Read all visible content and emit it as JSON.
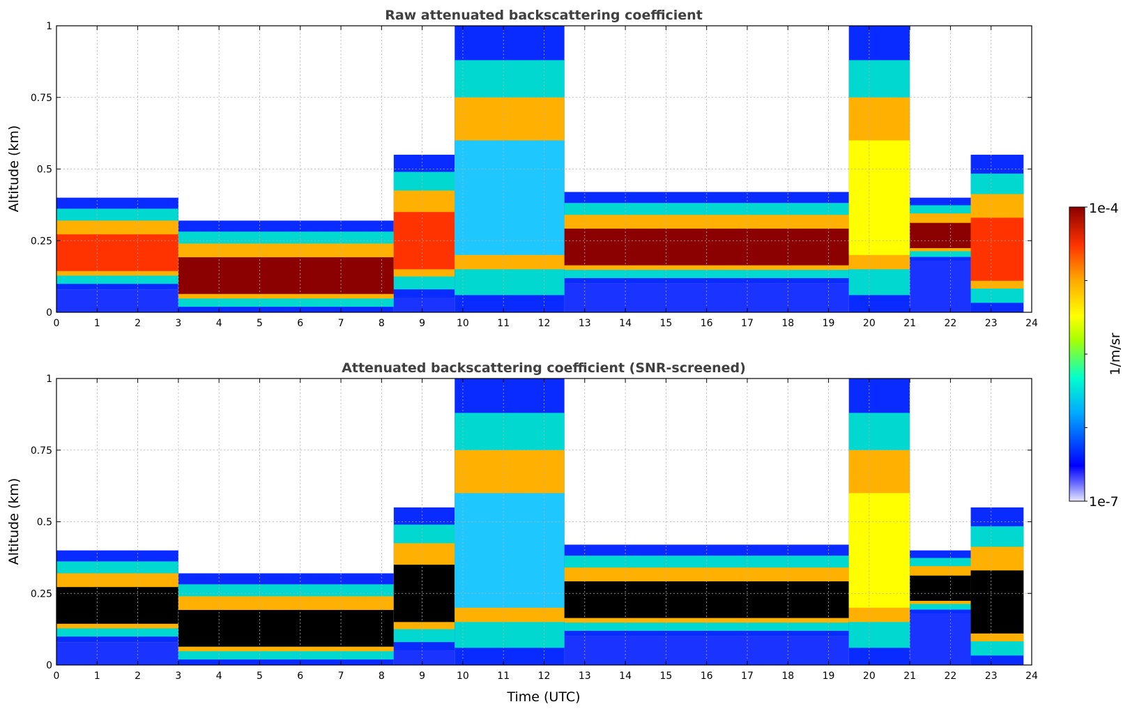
{
  "chart_data": [
    {
      "type": "heatmap",
      "title": "Raw attenuated backscattering coefficient",
      "xlabel": "",
      "ylabel": "Altitude (km)",
      "xlim": [
        0,
        24
      ],
      "ylim": [
        0,
        1
      ],
      "xticks": [
        "0",
        "1",
        "2",
        "3",
        "4",
        "5",
        "6",
        "7",
        "8",
        "9",
        "10",
        "11",
        "12",
        "13",
        "14",
        "15",
        "16",
        "17",
        "18",
        "19",
        "20",
        "21",
        "22",
        "23",
        "24"
      ],
      "yticks": [
        "0",
        "0.25",
        "0.5",
        "0.75",
        "1"
      ],
      "grid": true,
      "features": [
        {
          "t0": 0.0,
          "t1": 3.0,
          "base": 0.08,
          "top": 0.4,
          "level": "high"
        },
        {
          "t0": 3.0,
          "t1": 8.3,
          "base": 0.0,
          "top": 0.32,
          "level": "very high"
        },
        {
          "t0": 8.3,
          "t1": 9.8,
          "base": 0.05,
          "top": 0.55,
          "level": "high"
        },
        {
          "t0": 9.8,
          "t1": 12.5,
          "base": 0.0,
          "top": 1.0,
          "level": "low-medium"
        },
        {
          "t0": 12.5,
          "t1": 19.5,
          "base": 0.1,
          "top": 0.42,
          "level": "very high"
        },
        {
          "t0": 19.5,
          "t1": 21.0,
          "base": 0.0,
          "top": 1.0,
          "level": "medium"
        },
        {
          "t0": 21.0,
          "t1": 22.5,
          "base": 0.18,
          "top": 0.4,
          "level": "very high"
        },
        {
          "t0": 22.5,
          "t1": 23.8,
          "base": 0.0,
          "top": 0.55,
          "level": "high"
        }
      ]
    },
    {
      "type": "heatmap",
      "title": "Attenuated backscattering coefficient (SNR-screened)",
      "xlabel": "Time (UTC)",
      "ylabel": "Altitude (km)",
      "xlim": [
        0,
        24
      ],
      "ylim": [
        0,
        1
      ],
      "xticks": [
        "0",
        "1",
        "2",
        "3",
        "4",
        "5",
        "6",
        "7",
        "8",
        "9",
        "10",
        "11",
        "12",
        "13",
        "14",
        "15",
        "16",
        "17",
        "18",
        "19",
        "20",
        "21",
        "22",
        "23",
        "24"
      ],
      "yticks": [
        "0",
        "0.25",
        "0.5",
        "0.75",
        "1"
      ],
      "grid": true,
      "features": [
        {
          "t0": 0.0,
          "t1": 3.0,
          "base": 0.08,
          "top": 0.4,
          "level": "screened"
        },
        {
          "t0": 3.0,
          "t1": 8.3,
          "base": 0.0,
          "top": 0.32,
          "level": "screened"
        },
        {
          "t0": 8.3,
          "t1": 9.8,
          "base": 0.05,
          "top": 0.55,
          "level": "screened"
        },
        {
          "t0": 9.8,
          "t1": 12.5,
          "base": 0.0,
          "top": 1.0,
          "level": "low-medium"
        },
        {
          "t0": 12.5,
          "t1": 19.5,
          "base": 0.1,
          "top": 0.42,
          "level": "screened"
        },
        {
          "t0": 19.5,
          "t1": 21.0,
          "base": 0.0,
          "top": 1.0,
          "level": "medium"
        },
        {
          "t0": 21.0,
          "t1": 22.5,
          "base": 0.18,
          "top": 0.4,
          "level": "screened"
        },
        {
          "t0": 22.5,
          "t1": 23.8,
          "base": 0.0,
          "top": 0.55,
          "level": "screened"
        }
      ]
    }
  ],
  "colorbar": {
    "max_label": "1e-4",
    "min_label": "1e-7",
    "unit_label": "1/m/sr",
    "colormap": [
      "#e8e8ff",
      "#0000ff",
      "#00aaff",
      "#00ffcc",
      "#aaff00",
      "#ffff00",
      "#ffaa00",
      "#ff3300",
      "#8b0000"
    ]
  }
}
